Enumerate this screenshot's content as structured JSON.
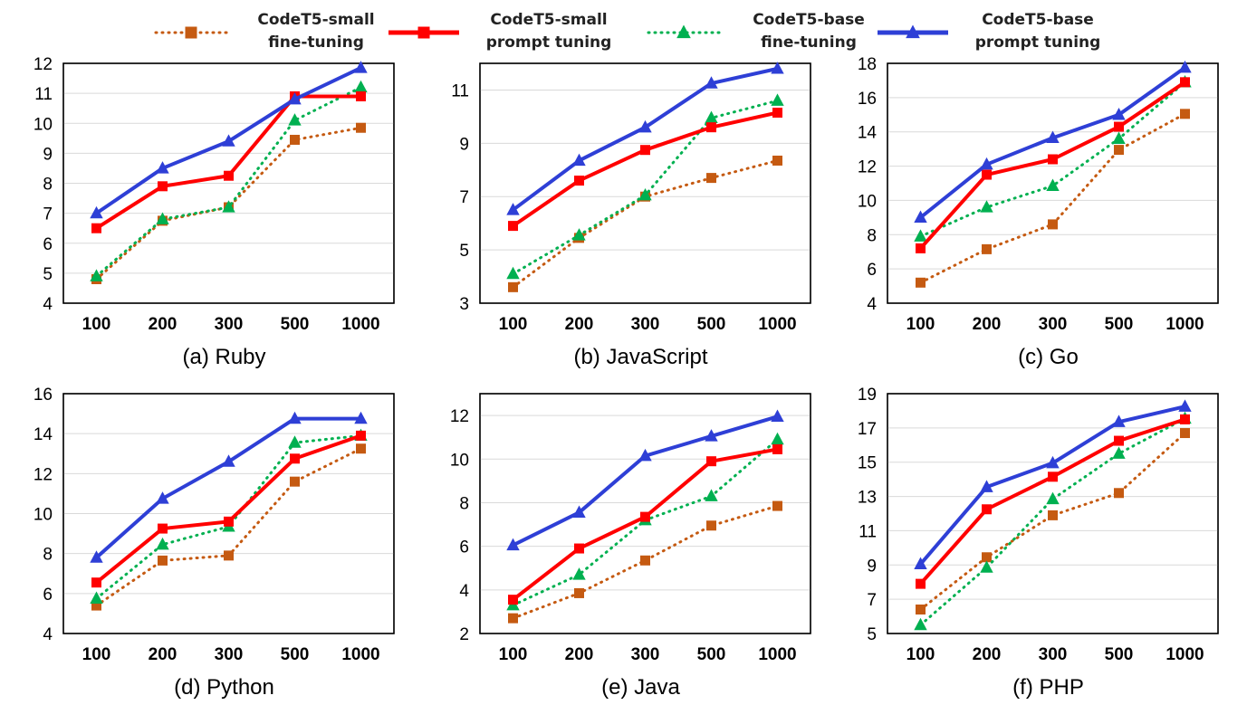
{
  "legend": [
    {
      "key": "small_ft",
      "line1": "CodeT5-small",
      "line2": "fine-tuning",
      "color": "#C55A11",
      "style": "dotted",
      "marker": "square"
    },
    {
      "key": "small_pt",
      "line1": "CodeT5-small",
      "line2": "prompt tuning",
      "color": "#FF0000",
      "style": "solid",
      "marker": "square"
    },
    {
      "key": "base_ft",
      "line1": "CodeT5-base",
      "line2": "fine-tuning",
      "color": "#00B050",
      "style": "dotted",
      "marker": "triangle"
    },
    {
      "key": "base_pt",
      "line1": "CodeT5-base",
      "line2": "prompt tuning",
      "color": "#2E3FD6",
      "style": "solid",
      "marker": "triangle"
    }
  ],
  "chart_data": [
    {
      "type": "line",
      "title": "(a) Ruby",
      "categories": [
        "100",
        "200",
        "300",
        "500",
        "1000"
      ],
      "ylim": [
        4,
        12
      ],
      "yticks": [
        4,
        5,
        6,
        7,
        8,
        9,
        10,
        11,
        12
      ],
      "grid": "horizontal",
      "series": [
        {
          "name": "CodeT5-small fine-tuning",
          "key": "small_ft",
          "values": [
            4.8,
            6.75,
            7.2,
            9.45,
            9.85
          ]
        },
        {
          "name": "CodeT5-small prompt tuning",
          "key": "small_pt",
          "values": [
            6.5,
            7.9,
            8.25,
            10.9,
            10.9
          ]
        },
        {
          "name": "CodeT5-base fine-tuning",
          "key": "base_ft",
          "values": [
            4.9,
            6.8,
            7.2,
            10.1,
            11.2
          ]
        },
        {
          "name": "CodeT5-base prompt tuning",
          "key": "base_pt",
          "values": [
            7.0,
            8.5,
            9.4,
            10.8,
            11.85
          ]
        }
      ]
    },
    {
      "type": "line",
      "title": "(b) JavaScript",
      "categories": [
        "100",
        "200",
        "300",
        "500",
        "1000"
      ],
      "ylim": [
        3,
        12
      ],
      "yticks": [
        3,
        5,
        7,
        9,
        11
      ],
      "grid": "horizontal",
      "series": [
        {
          "name": "CodeT5-small fine-tuning",
          "key": "small_ft",
          "values": [
            3.6,
            5.45,
            7.0,
            7.7,
            8.35
          ]
        },
        {
          "name": "CodeT5-small prompt tuning",
          "key": "small_pt",
          "values": [
            5.9,
            7.6,
            8.75,
            9.6,
            10.15
          ]
        },
        {
          "name": "CodeT5-base fine-tuning",
          "key": "base_ft",
          "values": [
            4.1,
            5.55,
            7.05,
            9.95,
            10.6
          ]
        },
        {
          "name": "CodeT5-base prompt tuning",
          "key": "base_pt",
          "values": [
            6.5,
            8.35,
            9.6,
            11.25,
            11.8
          ]
        }
      ]
    },
    {
      "type": "line",
      "title": "(c) Go",
      "categories": [
        "100",
        "200",
        "300",
        "500",
        "1000"
      ],
      "ylim": [
        4,
        18
      ],
      "yticks": [
        4,
        6,
        8,
        10,
        12,
        14,
        16,
        18
      ],
      "grid": "horizontal",
      "series": [
        {
          "name": "CodeT5-small fine-tuning",
          "key": "small_ft",
          "values": [
            5.2,
            7.15,
            8.6,
            12.95,
            15.05
          ]
        },
        {
          "name": "CodeT5-small prompt tuning",
          "key": "small_pt",
          "values": [
            7.2,
            11.5,
            12.4,
            14.3,
            16.9
          ]
        },
        {
          "name": "CodeT5-base fine-tuning",
          "key": "base_ft",
          "values": [
            7.9,
            9.6,
            10.85,
            13.6,
            16.9
          ]
        },
        {
          "name": "CodeT5-base prompt tuning",
          "key": "base_pt",
          "values": [
            9.0,
            12.1,
            13.65,
            15.0,
            17.75
          ]
        }
      ]
    },
    {
      "type": "line",
      "title": "(d) Python",
      "categories": [
        "100",
        "200",
        "300",
        "500",
        "1000"
      ],
      "ylim": [
        4,
        16
      ],
      "yticks": [
        4,
        6,
        8,
        10,
        12,
        14,
        16
      ],
      "grid": "horizontal",
      "series": [
        {
          "name": "CodeT5-small fine-tuning",
          "key": "small_ft",
          "values": [
            5.4,
            7.65,
            7.9,
            11.6,
            13.25
          ]
        },
        {
          "name": "CodeT5-small prompt tuning",
          "key": "small_pt",
          "values": [
            6.55,
            9.25,
            9.6,
            12.75,
            13.9
          ]
        },
        {
          "name": "CodeT5-base fine-tuning",
          "key": "base_ft",
          "values": [
            5.75,
            8.45,
            9.35,
            13.55,
            13.9
          ]
        },
        {
          "name": "CodeT5-base prompt tuning",
          "key": "base_pt",
          "values": [
            7.8,
            10.75,
            12.6,
            14.75,
            14.75
          ]
        }
      ]
    },
    {
      "type": "line",
      "title": "(e) Java",
      "categories": [
        "100",
        "200",
        "300",
        "500",
        "1000"
      ],
      "ylim": [
        2,
        13
      ],
      "yticks": [
        2,
        4,
        6,
        8,
        10,
        12
      ],
      "grid": "horizontal",
      "series": [
        {
          "name": "CodeT5-small fine-tuning",
          "key": "small_ft",
          "values": [
            2.7,
            3.85,
            5.35,
            6.95,
            7.85
          ]
        },
        {
          "name": "CodeT5-small prompt tuning",
          "key": "small_pt",
          "values": [
            3.55,
            5.9,
            7.35,
            9.9,
            10.45
          ]
        },
        {
          "name": "CodeT5-base fine-tuning",
          "key": "base_ft",
          "values": [
            3.3,
            4.7,
            7.2,
            8.3,
            10.9
          ]
        },
        {
          "name": "CodeT5-base prompt tuning",
          "key": "base_pt",
          "values": [
            6.05,
            7.55,
            10.15,
            11.05,
            11.95
          ]
        }
      ]
    },
    {
      "type": "line",
      "title": "(f) PHP",
      "categories": [
        "100",
        "200",
        "300",
        "500",
        "1000"
      ],
      "ylim": [
        5,
        19
      ],
      "yticks": [
        5,
        7,
        9,
        11,
        13,
        15,
        17,
        19
      ],
      "grid": "horizontal",
      "series": [
        {
          "name": "CodeT5-small fine-tuning",
          "key": "small_ft",
          "values": [
            6.4,
            9.45,
            11.9,
            13.2,
            16.7
          ]
        },
        {
          "name": "CodeT5-small prompt tuning",
          "key": "small_pt",
          "values": [
            7.9,
            12.25,
            14.15,
            16.25,
            17.5
          ]
        },
        {
          "name": "CodeT5-base fine-tuning",
          "key": "base_ft",
          "values": [
            5.5,
            8.85,
            12.85,
            15.5,
            17.55
          ]
        },
        {
          "name": "CodeT5-base prompt tuning",
          "key": "base_pt",
          "values": [
            9.05,
            13.55,
            14.95,
            17.35,
            18.25
          ]
        }
      ]
    }
  ]
}
